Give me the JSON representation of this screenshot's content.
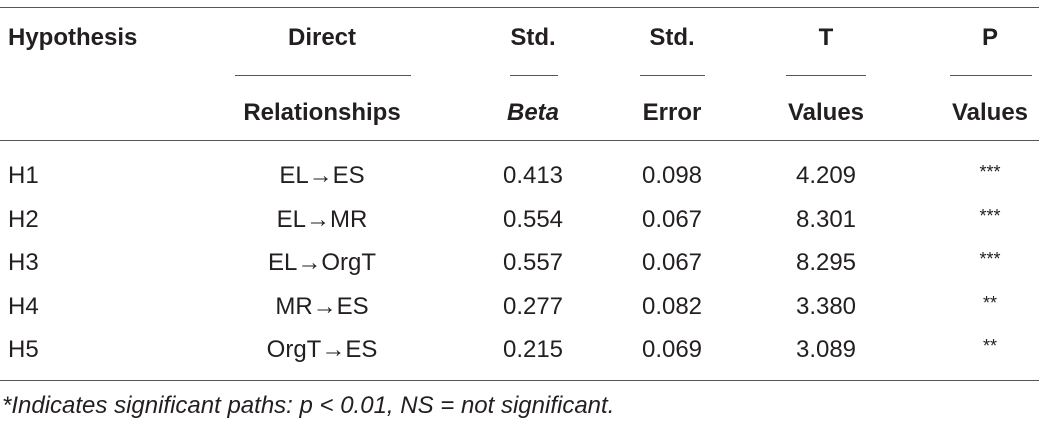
{
  "table": {
    "header": {
      "top": [
        "Hypothesis",
        "Direct",
        "Std.",
        "Std.",
        "T",
        "P"
      ],
      "bottom": [
        "Relationships",
        "Beta",
        "Error",
        "Values",
        "Values"
      ]
    },
    "rows": [
      [
        "H1",
        "EL→ES",
        "0.413",
        "0.098",
        "4.209",
        "***"
      ],
      [
        "H2",
        "EL→MR",
        "0.554",
        "0.067",
        "8.301",
        "***"
      ],
      [
        "H3",
        "EL→OrgT",
        "0.557",
        "0.067",
        "8.295",
        "***"
      ],
      [
        "H4",
        "MR→ES",
        "0.277",
        "0.082",
        "3.380",
        "**"
      ],
      [
        "H5",
        "OrgT→ES",
        "0.215",
        "0.069",
        "3.089",
        "**"
      ]
    ],
    "note": "*Indicates significant paths: p < 0.01, NS = not significant."
  }
}
